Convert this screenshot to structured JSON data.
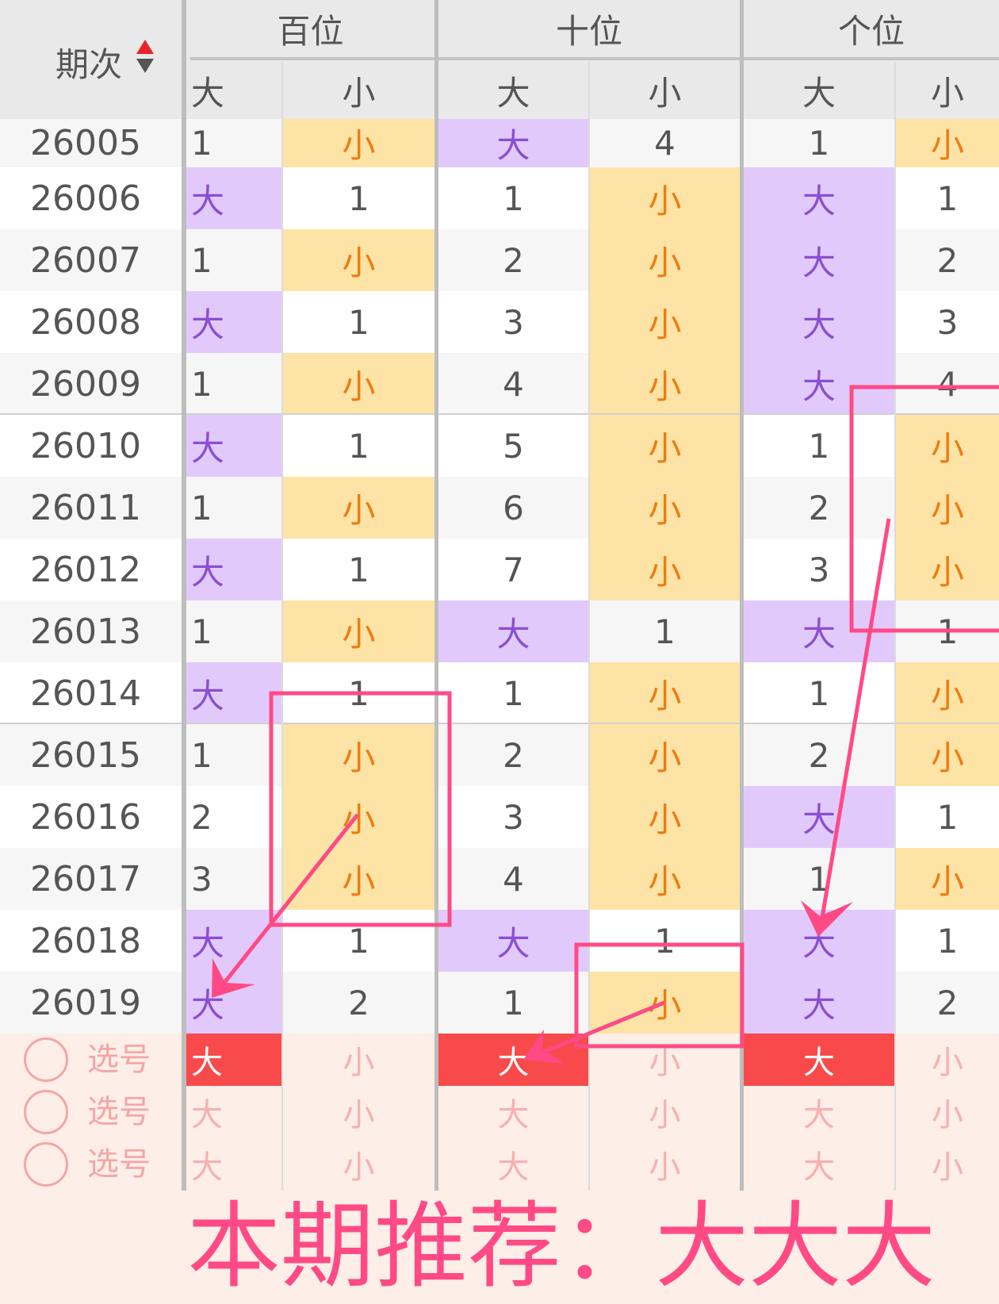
{
  "header": {
    "period": "期次",
    "sort_icon": "sort-up-down-icon",
    "groups": [
      "百位",
      "十位",
      "个位"
    ],
    "sub": [
      "大",
      "小"
    ]
  },
  "rows": [
    {
      "period": "26005",
      "cells": [
        "1",
        "小",
        "大",
        "4",
        "1",
        "小"
      ]
    },
    {
      "period": "26006",
      "cells": [
        "大",
        "1",
        "1",
        "小",
        "大",
        "1"
      ]
    },
    {
      "period": "26007",
      "cells": [
        "1",
        "小",
        "2",
        "小",
        "大",
        "2"
      ]
    },
    {
      "period": "26008",
      "cells": [
        "大",
        "1",
        "3",
        "小",
        "大",
        "3"
      ]
    },
    {
      "period": "26009",
      "cells": [
        "1",
        "小",
        "4",
        "小",
        "大",
        "4"
      ]
    },
    {
      "period": "26010",
      "cells": [
        "大",
        "1",
        "5",
        "小",
        "1",
        "小"
      ]
    },
    {
      "period": "26011",
      "cells": [
        "1",
        "小",
        "6",
        "小",
        "2",
        "小"
      ]
    },
    {
      "period": "26012",
      "cells": [
        "大",
        "1",
        "7",
        "小",
        "3",
        "小"
      ]
    },
    {
      "period": "26013",
      "cells": [
        "1",
        "小",
        "大",
        "1",
        "大",
        "1"
      ]
    },
    {
      "period": "26014",
      "cells": [
        "大",
        "1",
        "1",
        "小",
        "1",
        "小"
      ]
    },
    {
      "period": "26015",
      "cells": [
        "1",
        "小",
        "2",
        "小",
        "2",
        "小"
      ]
    },
    {
      "period": "26016",
      "cells": [
        "2",
        "小",
        "3",
        "小",
        "大",
        "1"
      ]
    },
    {
      "period": "26017",
      "cells": [
        "3",
        "小",
        "4",
        "小",
        "1",
        "小"
      ]
    },
    {
      "period": "26018",
      "cells": [
        "大",
        "1",
        "大",
        "1",
        "大",
        "1"
      ]
    },
    {
      "period": "26019",
      "cells": [
        "大",
        "2",
        "1",
        "小",
        "大",
        "2"
      ]
    }
  ],
  "selection": {
    "label": "选号",
    "rows": [
      {
        "cells": [
          "大",
          "小",
          "大",
          "小",
          "大",
          "小"
        ],
        "selected": [
          true,
          false,
          true,
          false,
          true,
          false
        ]
      },
      {
        "cells": [
          "大",
          "小",
          "大",
          "小",
          "大",
          "小"
        ],
        "selected": [
          false,
          false,
          false,
          false,
          false,
          false
        ]
      },
      {
        "cells": [
          "大",
          "小",
          "大",
          "小",
          "大",
          "小"
        ],
        "selected": [
          false,
          false,
          false,
          false,
          false,
          false
        ]
      }
    ]
  },
  "annotation": {
    "text": "本期推荐：大大大",
    "color": "#ff4a85"
  },
  "colors": {
    "big_bg": "#e2c9fb",
    "big_text": "#8a4fd0",
    "small_bg": "#fde4a6",
    "small_text": "#f07b10",
    "selected": "#f84a4a"
  }
}
